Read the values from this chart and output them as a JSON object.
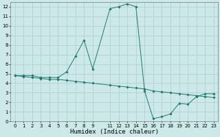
{
  "xlabel": "Humidex (Indice chaleur)",
  "line1_x": [
    0,
    1,
    2,
    3,
    4,
    5,
    6,
    7,
    8,
    9,
    11,
    12,
    13,
    14,
    15,
    16,
    17,
    18,
    19,
    20,
    21,
    22,
    23
  ],
  "line1_y": [
    4.8,
    4.8,
    4.8,
    4.6,
    4.6,
    4.6,
    5.2,
    6.8,
    8.5,
    5.5,
    11.8,
    12.0,
    12.3,
    12.0,
    3.2,
    0.3,
    0.5,
    0.8,
    1.9,
    1.8,
    2.6,
    2.9,
    2.9
  ],
  "line2_x": [
    0,
    1,
    2,
    3,
    4,
    5,
    6,
    7,
    8,
    9,
    11,
    12,
    13,
    14,
    15,
    16,
    17,
    18,
    19,
    20,
    21,
    22,
    23
  ],
  "line2_y": [
    4.8,
    4.7,
    4.6,
    4.5,
    4.4,
    4.4,
    4.3,
    4.2,
    4.1,
    4.0,
    3.8,
    3.7,
    3.6,
    3.5,
    3.4,
    3.2,
    3.1,
    3.0,
    2.9,
    2.8,
    2.7,
    2.6,
    2.5
  ],
  "line_color": "#1a7a6e",
  "bg_color": "#cce8e8",
  "grid_color": "#aacece",
  "xlim": [
    -0.5,
    23.5
  ],
  "ylim": [
    0,
    12.5
  ],
  "xticks": [
    0,
    1,
    2,
    3,
    4,
    5,
    6,
    7,
    8,
    9,
    11,
    12,
    13,
    14,
    15,
    16,
    17,
    18,
    19,
    20,
    21,
    22,
    23
  ],
  "yticks": [
    0,
    1,
    2,
    3,
    4,
    5,
    6,
    7,
    8,
    9,
    10,
    11,
    12
  ],
  "tick_fontsize": 5,
  "xlabel_fontsize": 6.5,
  "marker": "D",
  "marker_size": 1.8,
  "linewidth": 0.7
}
